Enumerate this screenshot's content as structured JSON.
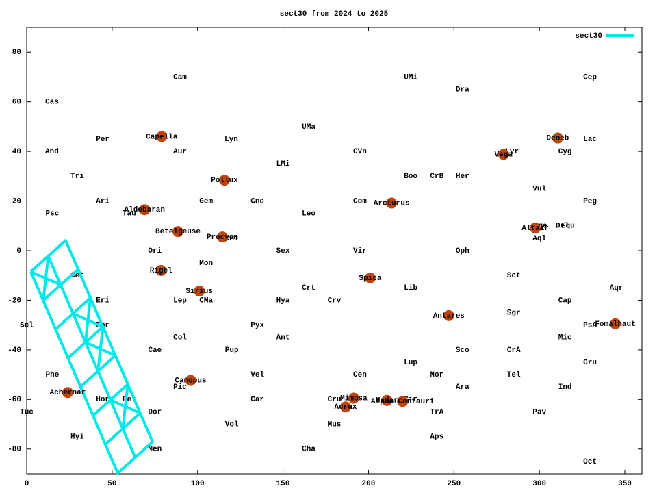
{
  "chart_data": {
    "type": "line",
    "title": "sect30 from 2024 to 2025",
    "xlim": [
      0,
      360
    ],
    "ylim": [
      -90,
      90
    ],
    "xticks": [
      0,
      50,
      100,
      150,
      200,
      250,
      300,
      350
    ],
    "yticks": [
      -80,
      -60,
      -40,
      -20,
      0,
      20,
      40,
      60,
      80
    ],
    "legend": "top right",
    "series": [
      {
        "name": "sect30",
        "color": "#00e8e8",
        "x": [
          2.4,
          9.7,
          16.9,
          24.2,
          31.5,
          38.8,
          46.0,
          53.3,
          73.7,
          66.4,
          59.2,
          51.9,
          44.6,
          37.3,
          30.1,
          22.8,
          2.4,
          null,
          12.6,
          19.9,
          27.1,
          34.4,
          41.7,
          49.0,
          56.2,
          63.5,
          null,
          9.7,
          30.1,
          null,
          16.9,
          37.3,
          null,
          24.2,
          44.6,
          null,
          31.5,
          51.9,
          null,
          38.8,
          59.2,
          null,
          46.0,
          66.4,
          null,
          2.4,
          19.9,
          null,
          12.6,
          9.7,
          null,
          27.1,
          44.6,
          null,
          37.3,
          34.4,
          null,
          34.4,
          51.9,
          null,
          44.6,
          41.7,
          null,
          49.0,
          66.4,
          null,
          59.2,
          56.2
        ],
        "y": [
          -8.5,
          -20.1,
          -31.7,
          -43.3,
          -54.9,
          -66.5,
          -78.1,
          -89.7,
          -77.1,
          -65.5,
          -53.9,
          -42.3,
          -30.7,
          -19.1,
          -7.5,
          4.1,
          -8.5,
          null,
          -2.2,
          -13.8,
          -25.4,
          -37.0,
          -48.6,
          -60.2,
          -71.8,
          -83.4,
          null,
          -20.1,
          -7.5,
          null,
          -31.7,
          -19.1,
          null,
          -43.3,
          -30.7,
          null,
          -54.9,
          -42.3,
          null,
          -66.5,
          -53.9,
          null,
          -78.1,
          -65.5,
          null,
          -8.5,
          -13.8,
          null,
          -2.2,
          -20.1,
          null,
          -25.4,
          -30.7,
          null,
          -19.1,
          -37.0,
          null,
          -37.0,
          -42.3,
          null,
          -30.7,
          -48.6,
          null,
          -60.2,
          -65.5,
          null,
          -53.9,
          -71.8
        ]
      }
    ],
    "star_color": "#c0440e",
    "stars": [
      {
        "name": "Capella",
        "x": 79,
        "y": 46
      },
      {
        "name": "Deneb",
        "x": 310.7,
        "y": 45.4
      },
      {
        "name": "Vega",
        "x": 279,
        "y": 38.8
      },
      {
        "name": "Pollux",
        "x": 115.7,
        "y": 28.4
      },
      {
        "name": "Arcturus",
        "x": 213.5,
        "y": 19.2
      },
      {
        "name": "Aldebaran",
        "x": 69,
        "y": 16.5
      },
      {
        "name": "Betelgeuse",
        "x": 88.5,
        "y": 7.7
      },
      {
        "name": "Procyon",
        "x": 114.5,
        "y": 5.5
      },
      {
        "name": "Altair",
        "x": 297.6,
        "y": 9.1
      },
      {
        "name": "Rigel",
        "x": 78.6,
        "y": -8
      },
      {
        "name": "Spica",
        "x": 201,
        "y": -11
      },
      {
        "name": "Sirius",
        "x": 101,
        "y": -16.3
      },
      {
        "name": "Antares",
        "x": 247,
        "y": -26.2
      },
      {
        "name": "Fomalhaut",
        "x": 344.4,
        "y": -29.5
      },
      {
        "name": "Canopus",
        "x": 95.9,
        "y": -52.3
      },
      {
        "name": "Achernar",
        "x": 24,
        "y": -57.2
      },
      {
        "name": "Mimosa",
        "x": 191.4,
        "y": -59.5
      },
      {
        "name": "Hadar",
        "x": 210.8,
        "y": -60.4
      },
      {
        "name": "Alpha Centauri",
        "x": 219.9,
        "y": -60.8
      },
      {
        "name": "Acrux",
        "x": 186.6,
        "y": -63
      }
    ],
    "labels": [
      {
        "text": "Cam",
        "x": 89.7,
        "y": 70
      },
      {
        "text": "UMi",
        "x": 224.7,
        "y": 70
      },
      {
        "text": "Cep",
        "x": 329.6,
        "y": 70
      },
      {
        "text": "Dra",
        "x": 255,
        "y": 65
      },
      {
        "text": "Cas",
        "x": 14.8,
        "y": 60
      },
      {
        "text": "UMa",
        "x": 165,
        "y": 50
      },
      {
        "text": "Per",
        "x": 44.5,
        "y": 45
      },
      {
        "text": "Lyn",
        "x": 119.7,
        "y": 45
      },
      {
        "text": "Lac",
        "x": 329.6,
        "y": 45
      },
      {
        "text": "And",
        "x": 14.8,
        "y": 40
      },
      {
        "text": "Aur",
        "x": 89.7,
        "y": 40
      },
      {
        "text": "CVn",
        "x": 195,
        "y": 40
      },
      {
        "text": "Cyg",
        "x": 315,
        "y": 40
      },
      {
        "text": "Lyr",
        "x": 284,
        "y": 40
      },
      {
        "text": "LMi",
        "x": 150,
        "y": 35
      },
      {
        "text": "Tri",
        "x": 29.6,
        "y": 30
      },
      {
        "text": "Boo",
        "x": 224.7,
        "y": 30
      },
      {
        "text": "CrB",
        "x": 240,
        "y": 30
      },
      {
        "text": "Her",
        "x": 255,
        "y": 30
      },
      {
        "text": "Vul",
        "x": 300,
        "y": 25
      },
      {
        "text": "Ari",
        "x": 44.5,
        "y": 20
      },
      {
        "text": "Gem",
        "x": 105,
        "y": 20
      },
      {
        "text": "Cnc",
        "x": 135,
        "y": 20
      },
      {
        "text": "Com",
        "x": 195,
        "y": 20
      },
      {
        "text": "Peg",
        "x": 329.6,
        "y": 20
      },
      {
        "text": "Psc",
        "x": 15,
        "y": 15
      },
      {
        "text": "Tau",
        "x": 60,
        "y": 15
      },
      {
        "text": "Leo",
        "x": 165,
        "y": 15
      },
      {
        "text": "Sge",
        "x": 300.6,
        "y": 10
      },
      {
        "text": "Del",
        "x": 313.5,
        "y": 10
      },
      {
        "text": "Equ",
        "x": 316.7,
        "y": 10
      },
      {
        "text": "Aql",
        "x": 300,
        "y": 5
      },
      {
        "text": "CMi",
        "x": 120,
        "y": 5
      },
      {
        "text": "Ori",
        "x": 75,
        "y": 0
      },
      {
        "text": "Sex",
        "x": 150,
        "y": 0
      },
      {
        "text": "Vir",
        "x": 195,
        "y": 0
      },
      {
        "text": "Oph",
        "x": 255,
        "y": 0
      },
      {
        "text": "Mon",
        "x": 105,
        "y": -5
      },
      {
        "text": "Cet",
        "x": 29.6,
        "y": -10
      },
      {
        "text": "Sct",
        "x": 285,
        "y": -10
      },
      {
        "text": "Crt",
        "x": 165,
        "y": -15
      },
      {
        "text": "Lib",
        "x": 224.7,
        "y": -15
      },
      {
        "text": "Aqr",
        "x": 345,
        "y": -15
      },
      {
        "text": "Eri",
        "x": 44.5,
        "y": -20
      },
      {
        "text": "Lep",
        "x": 89.7,
        "y": -20
      },
      {
        "text": "CMa",
        "x": 105,
        "y": -20
      },
      {
        "text": "Hya",
        "x": 150,
        "y": -20
      },
      {
        "text": "Crv",
        "x": 180,
        "y": -20
      },
      {
        "text": "Cap",
        "x": 315,
        "y": -20
      },
      {
        "text": "Sgr",
        "x": 285,
        "y": -25
      },
      {
        "text": "Scl",
        "x": 0,
        "y": -30
      },
      {
        "text": "For",
        "x": 44.5,
        "y": -30
      },
      {
        "text": "Pyx",
        "x": 135,
        "y": -30
      },
      {
        "text": "PsA",
        "x": 329.6,
        "y": -30
      },
      {
        "text": "Col",
        "x": 89.7,
        "y": -35
      },
      {
        "text": "Ant",
        "x": 150,
        "y": -35
      },
      {
        "text": "Mic",
        "x": 315,
        "y": -35
      },
      {
        "text": "Cae",
        "x": 75,
        "y": -40
      },
      {
        "text": "Pup",
        "x": 120,
        "y": -40
      },
      {
        "text": "Sco",
        "x": 255,
        "y": -40
      },
      {
        "text": "CrA",
        "x": 285,
        "y": -40
      },
      {
        "text": "Gru",
        "x": 329.6,
        "y": -45
      },
      {
        "text": "Lup",
        "x": 224.7,
        "y": -45
      },
      {
        "text": "Phe",
        "x": 15,
        "y": -50
      },
      {
        "text": "Vel",
        "x": 135,
        "y": -50
      },
      {
        "text": "Cen",
        "x": 195,
        "y": -50
      },
      {
        "text": "Nor",
        "x": 240,
        "y": -50
      },
      {
        "text": "Tel",
        "x": 285,
        "y": -50
      },
      {
        "text": "Pic",
        "x": 89.7,
        "y": -55
      },
      {
        "text": "Ara",
        "x": 255,
        "y": -55
      },
      {
        "text": "Ind",
        "x": 315,
        "y": -55
      },
      {
        "text": "Hor",
        "x": 44.5,
        "y": -60
      },
      {
        "text": "Ret",
        "x": 60,
        "y": -60
      },
      {
        "text": "Car",
        "x": 135,
        "y": -60
      },
      {
        "text": "Cru",
        "x": 180,
        "y": -60
      },
      {
        "text": "Cir",
        "x": 224.7,
        "y": -60
      },
      {
        "text": "Tuc",
        "x": 0,
        "y": -65
      },
      {
        "text": "Dor",
        "x": 75,
        "y": -65
      },
      {
        "text": "TrA",
        "x": 240,
        "y": -65
      },
      {
        "text": "Pav",
        "x": 300,
        "y": -65
      },
      {
        "text": "Vol",
        "x": 120,
        "y": -70
      },
      {
        "text": "Mus",
        "x": 180,
        "y": -70
      },
      {
        "text": "Hyi",
        "x": 29.6,
        "y": -75
      },
      {
        "text": "Aps",
        "x": 240,
        "y": -75
      },
      {
        "text": "Men",
        "x": 75,
        "y": -80
      },
      {
        "text": "Cha",
        "x": 165,
        "y": -80
      },
      {
        "text": "Oct",
        "x": 329.6,
        "y": -85
      }
    ]
  }
}
